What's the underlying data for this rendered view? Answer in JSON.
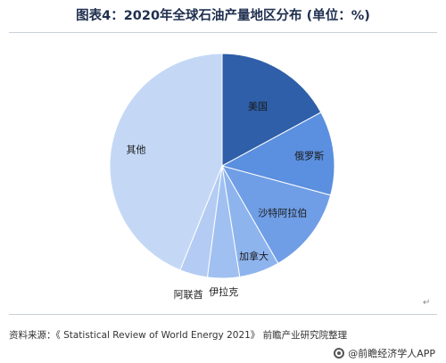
{
  "title": "图表4：2020年全球石油产量地区分布 (单位：%)",
  "source": "资料来源：《 Statistical Review of World Energy 2021》 前瞻产业研究院整理",
  "brand": "@前瞻经济学人APP",
  "colors": {
    "美国": "#2e5fa8",
    "俄罗斯": "#5b8fdf",
    "沙特阿拉伯": "#6f9ee6",
    "加拿大": "#8eb4ee",
    "伊拉克": "#9fc0f1",
    "阿联酋": "#b4ccf3",
    "其他": "#c4d8f6"
  },
  "chart_data": {
    "type": "pie",
    "categories": [
      "美国",
      "俄罗斯",
      "沙特阿拉伯",
      "加拿大",
      "伊拉克",
      "阿联酋",
      "其他"
    ],
    "values": [
      17.1,
      12.1,
      12.5,
      5.8,
      4.6,
      4.0,
      43.9
    ],
    "start": "12 o'clock",
    "direction": "clockwise"
  }
}
